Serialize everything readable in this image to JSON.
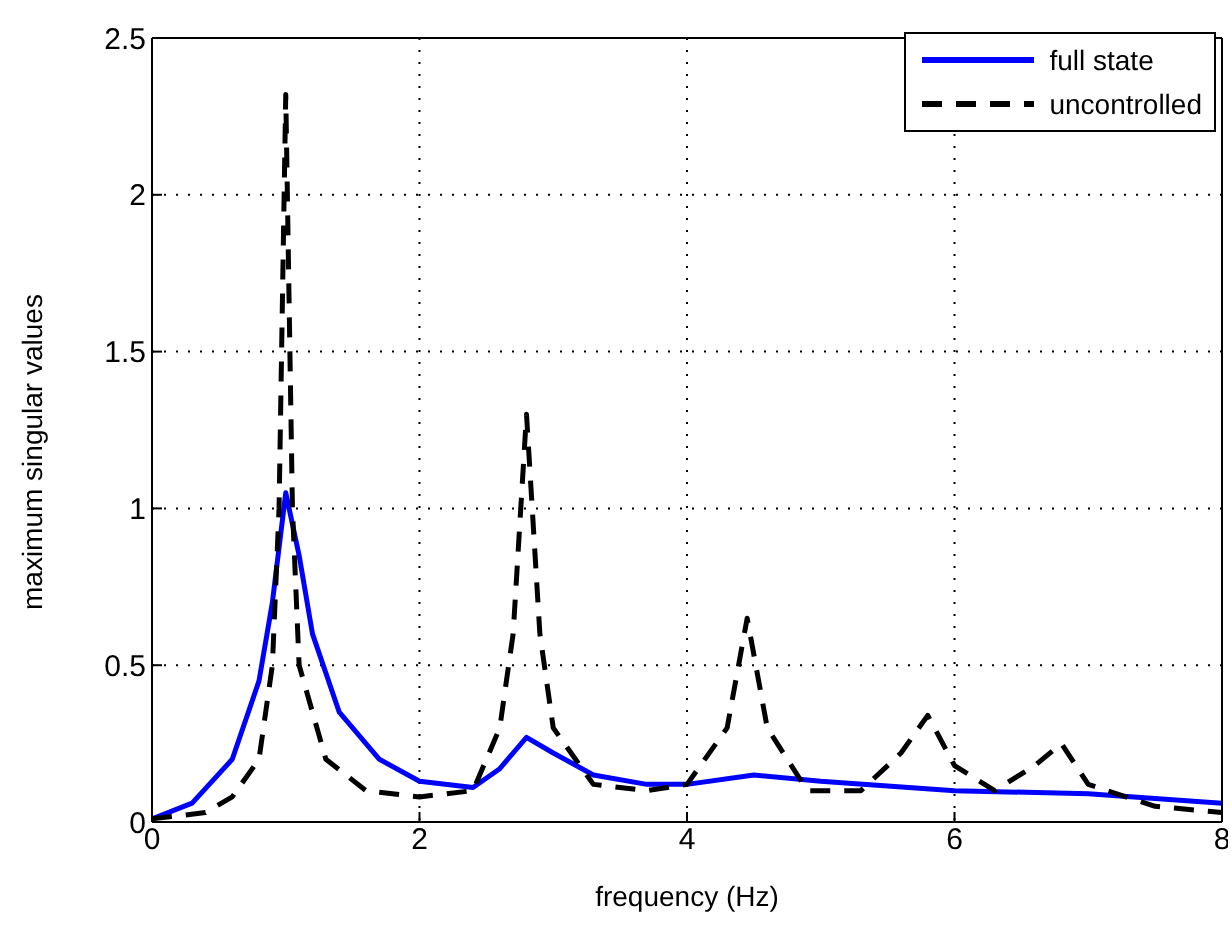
{
  "chart_data": {
    "type": "line",
    "xlabel": "frequency  (Hz)",
    "ylabel": "maximum singular values",
    "xlim": [
      0,
      8
    ],
    "xticks": [
      0,
      2,
      4,
      6,
      8
    ],
    "ylim": [
      0,
      2.5
    ],
    "yticks": [
      0,
      0.5,
      1,
      1.5,
      2,
      2.5
    ],
    "grid": true,
    "legend": "top right",
    "marker": "none",
    "series": [
      {
        "name": "full state",
        "color": "#0000ff",
        "line_style": "solid",
        "x": [
          0,
          0.3,
          0.6,
          0.8,
          0.9,
          1.0,
          1.1,
          1.2,
          1.4,
          1.7,
          2.0,
          2.4,
          2.6,
          2.8,
          3.0,
          3.3,
          3.7,
          4.0,
          4.5,
          5.0,
          6.0,
          7.0,
          8.0
        ],
        "values": [
          0.01,
          0.06,
          0.2,
          0.45,
          0.7,
          1.05,
          0.85,
          0.6,
          0.35,
          0.2,
          0.13,
          0.11,
          0.17,
          0.27,
          0.22,
          0.15,
          0.12,
          0.12,
          0.15,
          0.13,
          0.1,
          0.09,
          0.06
        ]
      },
      {
        "name": "uncontrolled",
        "color": "#000000",
        "line_style": "dashed",
        "x": [
          0,
          0.4,
          0.6,
          0.8,
          0.9,
          0.95,
          1.0,
          1.05,
          1.1,
          1.3,
          1.6,
          2.0,
          2.4,
          2.6,
          2.7,
          2.8,
          2.9,
          3.0,
          3.3,
          3.7,
          4.0,
          4.3,
          4.45,
          4.6,
          4.9,
          5.3,
          5.6,
          5.8,
          6.0,
          6.3,
          6.6,
          6.8,
          7.0,
          7.5,
          8.0
        ],
        "values": [
          0.01,
          0.03,
          0.08,
          0.2,
          0.5,
          1.0,
          2.32,
          1.0,
          0.5,
          0.2,
          0.1,
          0.08,
          0.1,
          0.3,
          0.6,
          1.3,
          0.6,
          0.3,
          0.12,
          0.1,
          0.12,
          0.3,
          0.65,
          0.3,
          0.1,
          0.1,
          0.22,
          0.34,
          0.18,
          0.1,
          0.18,
          0.25,
          0.12,
          0.05,
          0.03
        ]
      }
    ]
  }
}
